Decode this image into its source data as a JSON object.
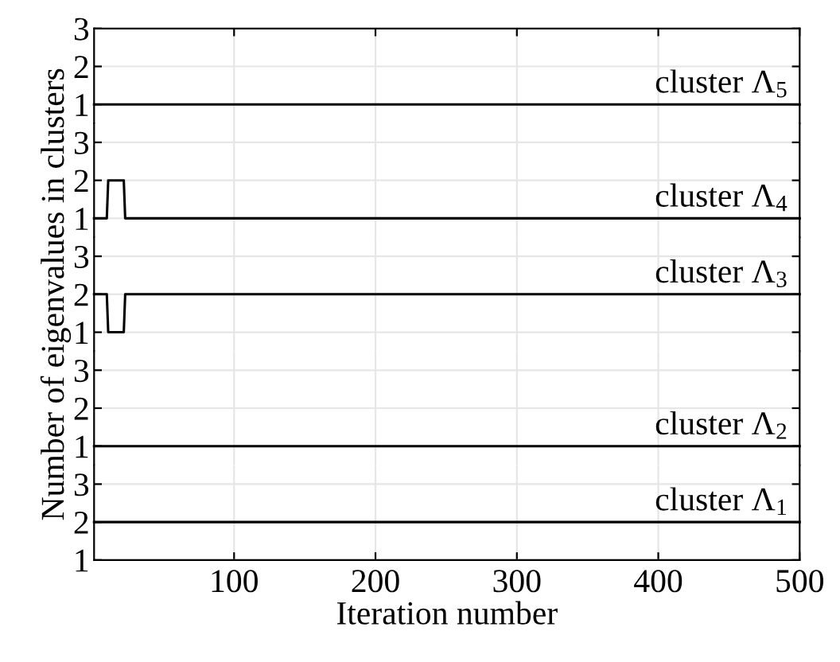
{
  "chart_data": [
    {
      "type": "line",
      "xlim": [
        1,
        500
      ],
      "xticks": [
        100,
        200,
        300,
        400,
        500
      ],
      "ylim": [
        0.5,
        3
      ],
      "yticks": [
        1,
        2,
        3
      ],
      "tick_labels": "y",
      "grid": true,
      "marker": "none",
      "line_style": "solid",
      "series": [
        {
          "name": "cluster Λ$_{5}$",
          "color": "#000000",
          "x": [
            1,
            500
          ],
          "values": [
            1,
            1
          ]
        }
      ]
    },
    {
      "type": "line",
      "xlim": [
        1,
        500
      ],
      "xticks": [
        100,
        200,
        300,
        400,
        500
      ],
      "ylim": [
        0.5,
        3.5
      ],
      "yticks": [
        1,
        2,
        3
      ],
      "tick_labels": "y",
      "grid": true,
      "marker": "none",
      "line_style": "solid",
      "series": [
        {
          "name": "cluster Λ$_{4}$",
          "color": "#000000",
          "x": [
            1,
            10,
            11,
            22,
            23,
            500
          ],
          "values": [
            1,
            1,
            2,
            2,
            1,
            1
          ]
        }
      ]
    },
    {
      "type": "line",
      "ylabel": "Number of eigenvalues in clusters",
      "xlim": [
        1,
        500
      ],
      "xticks": [
        100,
        200,
        300,
        400,
        500
      ],
      "ylim": [
        0.5,
        3.5
      ],
      "yticks": [
        1,
        2,
        3
      ],
      "tick_labels": "y",
      "grid": true,
      "marker": "none",
      "line_style": "solid",
      "series": [
        {
          "name": "cluster Λ$_{3}$",
          "color": "#000000",
          "x": [
            1,
            10,
            11,
            22,
            23,
            500
          ],
          "values": [
            2,
            2,
            1,
            1,
            2,
            2
          ]
        }
      ]
    },
    {
      "type": "line",
      "xlim": [
        1,
        500
      ],
      "xticks": [
        100,
        200,
        300,
        400,
        500
      ],
      "ylim": [
        0.5,
        3.5
      ],
      "yticks": [
        1,
        2,
        3
      ],
      "tick_labels": "y",
      "grid": true,
      "marker": "none",
      "line_style": "solid",
      "series": [
        {
          "name": "cluster Λ$_{2}$",
          "color": "#000000",
          "x": [
            1,
            500
          ],
          "values": [
            1,
            1
          ]
        }
      ]
    },
    {
      "type": "line",
      "xlabel": "Iteration number",
      "xlim": [
        1,
        500
      ],
      "xticks": [
        100,
        200,
        300,
        400,
        500
      ],
      "ylim": [
        1,
        3.5
      ],
      "yticks": [
        1,
        2,
        3
      ],
      "grid": true,
      "marker": "none",
      "line_style": "solid",
      "series": [
        {
          "name": "cluster Λ$_{1}$",
          "color": "#000000",
          "x": [
            1,
            500
          ],
          "values": [
            2,
            2
          ]
        }
      ]
    }
  ]
}
